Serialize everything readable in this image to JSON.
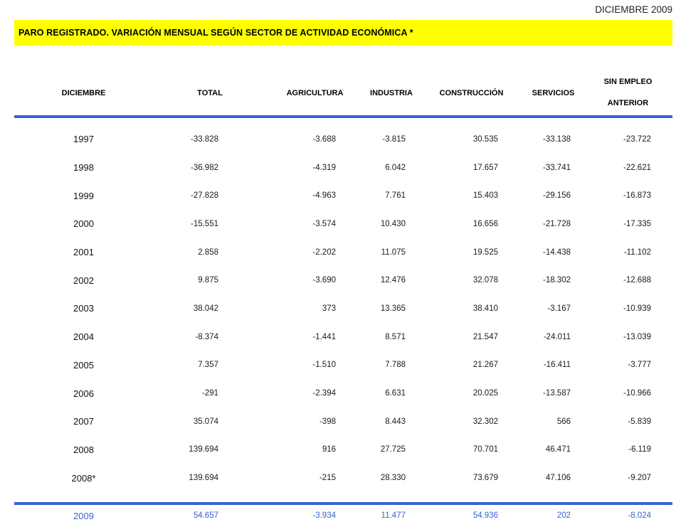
{
  "page": {
    "date_label": "DICIEMBRE 2009",
    "banner_title": "PARO REGISTRADO. VARIACIÓN MENSUAL SEGÚN SECTOR DE ACTIVIDAD ECONÓMICA *"
  },
  "colors": {
    "banner_bg": "#FFFF00",
    "banner_text": "#000000",
    "rule_blue": "#3A62CC",
    "body_text": "#1A1A1A",
    "highlight_text": "#3A62CC"
  },
  "table": {
    "header": {
      "diciembre": "DICIEMBRE",
      "total": "TOTAL",
      "agricultura": "AGRICULTURA",
      "industria": "INDUSTRIA",
      "construccion": "CONSTRUCCIÓN",
      "servicios": "SERVICIOS",
      "sin_empleo_line1": "SIN EMPLEO",
      "sin_empleo_line2": "ANTERIOR"
    },
    "rows": [
      {
        "year": "1997",
        "total": "-33.828",
        "agricultura": "-3.688",
        "industria": "-3.815",
        "construccion": "30.535",
        "servicios": "-33.138",
        "sin_empleo": "-23.722"
      },
      {
        "year": "1998",
        "total": "-36.982",
        "agricultura": "-4.319",
        "industria": "6.042",
        "construccion": "17.657",
        "servicios": "-33.741",
        "sin_empleo": "-22.621"
      },
      {
        "year": "1999",
        "total": "-27.828",
        "agricultura": "-4.963",
        "industria": "7.761",
        "construccion": "15.403",
        "servicios": "-29.156",
        "sin_empleo": "-16.873"
      },
      {
        "year": "2000",
        "total": "-15.551",
        "agricultura": "-3.574",
        "industria": "10.430",
        "construccion": "16.656",
        "servicios": "-21.728",
        "sin_empleo": "-17.335"
      },
      {
        "year": "2001",
        "total": "2.858",
        "agricultura": "-2.202",
        "industria": "11.075",
        "construccion": "19.525",
        "servicios": "-14.438",
        "sin_empleo": "-11.102"
      },
      {
        "year": "2002",
        "total": "9.875",
        "agricultura": "-3.690",
        "industria": "12.476",
        "construccion": "32.078",
        "servicios": "-18.302",
        "sin_empleo": "-12.688"
      },
      {
        "year": "2003",
        "total": "38.042",
        "agricultura": "373",
        "industria": "13.365",
        "construccion": "38.410",
        "servicios": "-3.167",
        "sin_empleo": "-10.939"
      },
      {
        "year": "2004",
        "total": "-8.374",
        "agricultura": "-1.441",
        "industria": "8.571",
        "construccion": "21.547",
        "servicios": "-24.011",
        "sin_empleo": "-13.039"
      },
      {
        "year": "2005",
        "total": "7.357",
        "agricultura": "-1.510",
        "industria": "7.788",
        "construccion": "21.267",
        "servicios": "-16.411",
        "sin_empleo": "-3.777"
      },
      {
        "year": "2006",
        "total": "-291",
        "agricultura": "-2.394",
        "industria": "6.631",
        "construccion": "20.025",
        "servicios": "-13.587",
        "sin_empleo": "-10.966"
      },
      {
        "year": "2007",
        "total": "35.074",
        "agricultura": "-398",
        "industria": "8.443",
        "construccion": "32.302",
        "servicios": "566",
        "sin_empleo": "-5.839"
      },
      {
        "year": "2008",
        "total": "139.694",
        "agricultura": "916",
        "industria": "27.725",
        "construccion": "70.701",
        "servicios": "46.471",
        "sin_empleo": "-6.119"
      },
      {
        "year": "2008*",
        "total": "139.694",
        "agricultura": "-215",
        "industria": "28.330",
        "construccion": "73.679",
        "servicios": "47.106",
        "sin_empleo": "-9.207"
      }
    ],
    "highlight_row": {
      "year": "2009",
      "total": "54.657",
      "agricultura": "-3.934",
      "industria": "11.477",
      "construccion": "54.936",
      "servicios": "202",
      "sin_empleo": "-8.024"
    }
  }
}
